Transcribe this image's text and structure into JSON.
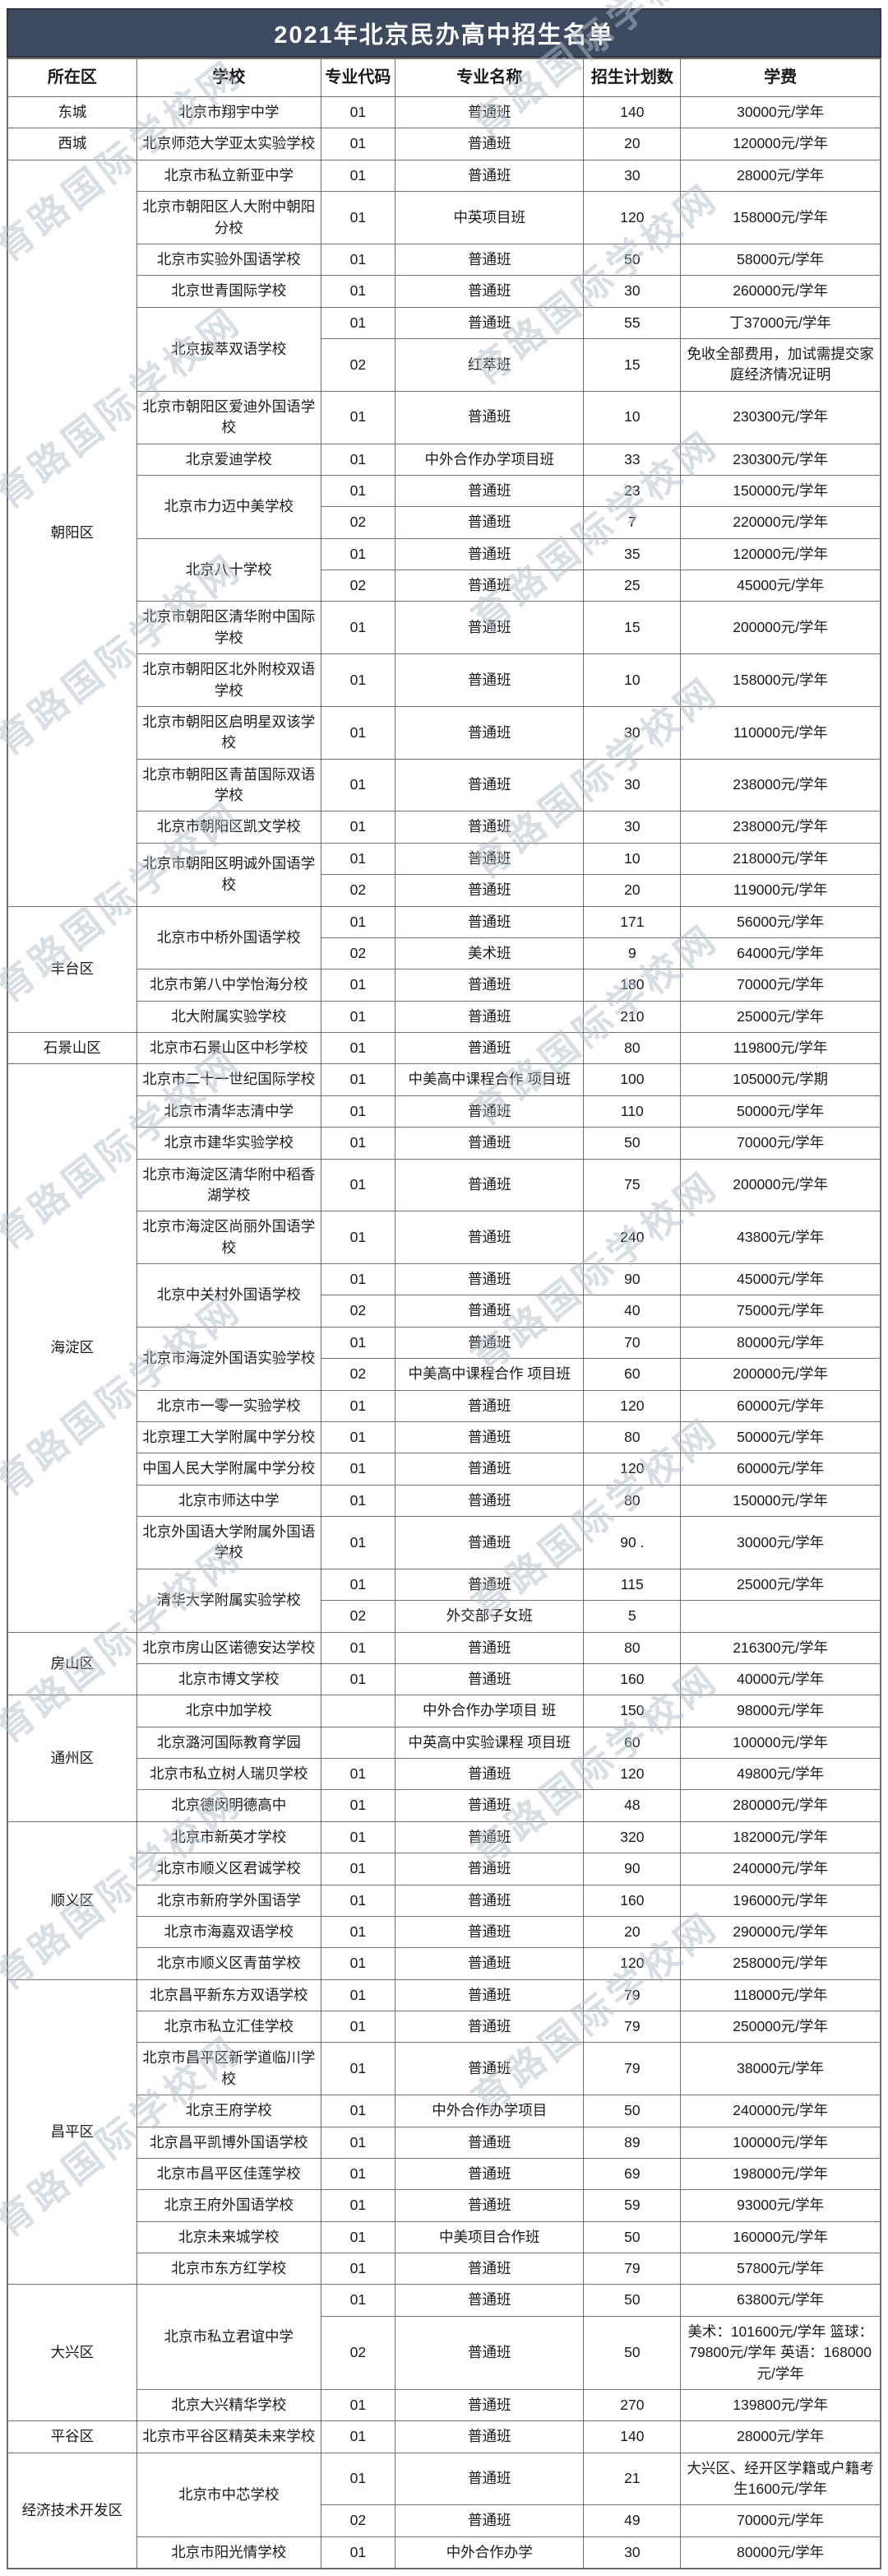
{
  "title": "2021年北京民办高中招生名单",
  "watermark": "育路国际学校网",
  "colors": {
    "header_bg": "#3e4a5f",
    "header_text": "#ffffff",
    "border": "#6f6f6f",
    "watermark": "#b4bccb"
  },
  "table": {
    "columns": [
      "所在区",
      "学校",
      "专业代码",
      "专业名称",
      "招生计划数",
      "学费"
    ],
    "districts": [
      {
        "name": "东城",
        "schools": [
          {
            "name": "北京市翔宇中学",
            "programs": [
              {
                "code": "01",
                "major": "普通班",
                "plan": "140",
                "fee": "30000元/学年"
              }
            ]
          }
        ]
      },
      {
        "name": "西城",
        "schools": [
          {
            "name": "北京师范大学亚太实验学校",
            "programs": [
              {
                "code": "01",
                "major": "普通班",
                "plan": "20",
                "fee": "120000元/学年"
              }
            ]
          }
        ]
      },
      {
        "name": "朝阳区",
        "schools": [
          {
            "name": "北京市私立新亚中学",
            "programs": [
              {
                "code": "01",
                "major": "普通班",
                "plan": "30",
                "fee": "28000元/学年"
              }
            ]
          },
          {
            "name": "北京市朝阳区人大附中朝阳分校",
            "programs": [
              {
                "code": "01",
                "major": "中英项目班",
                "plan": "120",
                "fee": "158000元/学年"
              }
            ]
          },
          {
            "name": "北京市实验外国语学校",
            "programs": [
              {
                "code": "01",
                "major": "普通班",
                "plan": "50",
                "fee": "58000元/学年"
              }
            ]
          },
          {
            "name": "北京世青国际学校",
            "programs": [
              {
                "code": "01",
                "major": "普通班",
                "plan": "30",
                "fee": "260000元/学年"
              }
            ]
          },
          {
            "name": "北京拔萃双语学校",
            "programs": [
              {
                "code": "01",
                "major": "普通班",
                "plan": "55",
                "fee": "丁37000元/学年"
              },
              {
                "code": "02",
                "major": "红萃班",
                "plan": "15",
                "fee": "免收全部费用，加试需提交家庭经济情况证明"
              }
            ]
          },
          {
            "name": "北京市朝阳区爱迪外国语学校",
            "programs": [
              {
                "code": "01",
                "major": "普通班",
                "plan": "10",
                "fee": "230300元/学年"
              }
            ]
          },
          {
            "name": "北京爱迪学校",
            "programs": [
              {
                "code": "01",
                "major": "中外合作办学项目班",
                "plan": "33",
                "fee": "230300元/学年"
              }
            ]
          },
          {
            "name": "北京市力迈中美学校",
            "programs": [
              {
                "code": "01",
                "major": "普通班",
                "plan": "23",
                "fee": "150000元/学年"
              },
              {
                "code": "02",
                "major": "普通班",
                "plan": "7",
                "fee": "220000元/学年"
              }
            ]
          },
          {
            "name": "北京八十学校",
            "programs": [
              {
                "code": "01",
                "major": "普通班",
                "plan": "35",
                "fee": "120000元/学年"
              },
              {
                "code": "02",
                "major": "普通班",
                "plan": "25",
                "fee": "45000元/学年"
              }
            ]
          },
          {
            "name": "北京市朝阳区清华附中国际学校",
            "programs": [
              {
                "code": "01",
                "major": "普通班",
                "plan": "15",
                "fee": "200000元/学年"
              }
            ]
          },
          {
            "name": "北京市朝阳区北外附校双语学校",
            "programs": [
              {
                "code": "01",
                "major": "普通班",
                "plan": "10",
                "fee": "158000元/学年"
              }
            ]
          },
          {
            "name": "北京市朝阳区启明星双该学校",
            "programs": [
              {
                "code": "01",
                "major": "普通班",
                "plan": "30",
                "fee": "110000元/学年"
              }
            ]
          },
          {
            "name": "北京市朝阳区青苗国际双语学校",
            "programs": [
              {
                "code": "01",
                "major": "普通班",
                "plan": "30",
                "fee": "238000元/学年"
              }
            ]
          },
          {
            "name": "北京市朝阳区凯文学校",
            "programs": [
              {
                "code": "01",
                "major": "普通班",
                "plan": "30",
                "fee": "238000元/学年"
              }
            ]
          },
          {
            "name": "北京市朝阳区明诚外国语学校",
            "programs": [
              {
                "code": "01",
                "major": "普通班",
                "plan": "10",
                "fee": "218000元/学年"
              },
              {
                "code": "02",
                "major": "普通班",
                "plan": "20",
                "fee": "119000元/学年"
              }
            ]
          }
        ]
      },
      {
        "name": "丰台区",
        "schools": [
          {
            "name": "北京市中桥外国语学校",
            "programs": [
              {
                "code": "01",
                "major": "普通班",
                "plan": "171",
                "fee": "56000元/学年"
              },
              {
                "code": "02",
                "major": "美术班",
                "plan": "9",
                "fee": "64000元/学年"
              }
            ]
          },
          {
            "name": "北京市第八中学怡海分校",
            "programs": [
              {
                "code": "01",
                "major": "普通班",
                "plan": "180",
                "fee": "70000元/学年"
              }
            ]
          },
          {
            "name": "北大附属实验学校",
            "programs": [
              {
                "code": "01",
                "major": "普通班",
                "plan": "210",
                "fee": "25000元/学年"
              }
            ]
          }
        ]
      },
      {
        "name": "石景山区",
        "schools": [
          {
            "name": "北京市石景山区中杉学校",
            "programs": [
              {
                "code": "01",
                "major": "普通班",
                "plan": "80",
                "fee": "119800元/学年"
              }
            ]
          }
        ]
      },
      {
        "name": "海淀区",
        "schools": [
          {
            "name": "北京市二十一世纪国际学校",
            "programs": [
              {
                "code": "01",
                "major": "中美高中课程合作 项目班",
                "plan": "100",
                "fee": "105000元/学期"
              }
            ]
          },
          {
            "name": "北京市清华志清中学",
            "programs": [
              {
                "code": "01",
                "major": "普通班",
                "plan": "110",
                "fee": "50000元/学年"
              }
            ]
          },
          {
            "name": "北京市建华实验学校",
            "programs": [
              {
                "code": "01",
                "major": "普通班",
                "plan": "50",
                "fee": "70000元/学年"
              }
            ]
          },
          {
            "name": "北京市海淀区清华附中稻香湖学校",
            "programs": [
              {
                "code": "01",
                "major": "普通班",
                "plan": "75",
                "fee": "200000元/学年"
              }
            ]
          },
          {
            "name": "北京市海淀区尚丽外国语学校",
            "programs": [
              {
                "code": "01",
                "major": "普通班",
                "plan": "240",
                "fee": "43800元/学年"
              }
            ]
          },
          {
            "name": "北京中关村外国语学校",
            "programs": [
              {
                "code": "01",
                "major": "普通班",
                "plan": "90",
                "fee": "45000元/学年"
              },
              {
                "code": "02",
                "major": "普通班",
                "plan": "40",
                "fee": "75000元/学年"
              }
            ]
          },
          {
            "name": "北京市海淀外国语实验学校",
            "programs": [
              {
                "code": "01",
                "major": "普通班",
                "plan": "70",
                "fee": "80000元/学年"
              },
              {
                "code": "02",
                "major": "中美高中课程合作 项目班",
                "plan": "60",
                "fee": "200000元/学年"
              }
            ]
          },
          {
            "name": "北京市一零一实验学校",
            "programs": [
              {
                "code": "01",
                "major": "普通班",
                "plan": "120",
                "fee": "60000元/学年"
              }
            ]
          },
          {
            "name": "北京理工大学附属中学分校",
            "programs": [
              {
                "code": "01",
                "major": "普通班",
                "plan": "80",
                "fee": "50000元/学年"
              }
            ]
          },
          {
            "name": "中国人民大学附属中学分校",
            "programs": [
              {
                "code": "01",
                "major": "普通班",
                "plan": "120",
                "fee": "60000元/学年"
              }
            ]
          },
          {
            "name": "北京市师达中学",
            "programs": [
              {
                "code": "01",
                "major": "普通班",
                "plan": "80",
                "fee": "150000元/学年"
              }
            ]
          },
          {
            "name": "北京外国语大学附属外国语学校",
            "programs": [
              {
                "code": "01",
                "major": "普通班",
                "plan": "90 .",
                "fee": "30000元/学年"
              }
            ]
          },
          {
            "name": "清华大学附属实验学校",
            "programs": [
              {
                "code": "01",
                "major": "普通班",
                "plan": "115",
                "fee": "25000元/学年"
              },
              {
                "code": "02",
                "major": "外交部子女班",
                "plan": "5",
                "fee": ""
              }
            ]
          }
        ]
      },
      {
        "name": "房山区",
        "schools": [
          {
            "name": "北京市房山区诺德安达学校",
            "programs": [
              {
                "code": "01",
                "major": "普通班",
                "plan": "80",
                "fee": "216300元/学年"
              }
            ]
          },
          {
            "name": "北京市博文学校",
            "programs": [
              {
                "code": "01",
                "major": "普通班",
                "plan": "160",
                "fee": "40000元/学年"
              }
            ]
          }
        ]
      },
      {
        "name": "通州区",
        "schools": [
          {
            "name": "北京中加学校",
            "programs": [
              {
                "code": "",
                "major": "中外合作办学项目 班",
                "plan": "150",
                "fee": "98000元/学年"
              }
            ]
          },
          {
            "name": "北京潞河国际教育学园",
            "programs": [
              {
                "code": "",
                "major": "中英高中实验课程 项目班",
                "plan": "60",
                "fee": "100000元/学年"
              }
            ]
          },
          {
            "name": "北京市私立树人瑞贝学校",
            "programs": [
              {
                "code": "01",
                "major": "普通班",
                "plan": "120",
                "fee": "49800元/学年"
              }
            ]
          },
          {
            "name": "北京德闵明德高中",
            "programs": [
              {
                "code": "01",
                "major": "普通班",
                "plan": "48",
                "fee": "280000元/学年"
              }
            ]
          }
        ]
      },
      {
        "name": "顺义区",
        "schools": [
          {
            "name": "北京市新英才学校",
            "programs": [
              {
                "code": "01",
                "major": "普通班",
                "plan": "320",
                "fee": "182000元/学年"
              }
            ]
          },
          {
            "name": "北京市顺义区君诚学校",
            "programs": [
              {
                "code": "01",
                "major": "普通班",
                "plan": "90",
                "fee": "240000元/学年"
              }
            ]
          },
          {
            "name": "北京市新府学外国语学",
            "programs": [
              {
                "code": "01",
                "major": "普通班",
                "plan": "160",
                "fee": "196000元/学年"
              }
            ]
          },
          {
            "name": "北京市海嘉双语学校",
            "programs": [
              {
                "code": "01",
                "major": "普通班",
                "plan": "20",
                "fee": "290000元/学年"
              }
            ]
          },
          {
            "name": "北京市顺义区青苗学校",
            "programs": [
              {
                "code": "01",
                "major": "普通班",
                "plan": "120",
                "fee": "258000元/学年"
              }
            ]
          }
        ]
      },
      {
        "name": "昌平区",
        "schools": [
          {
            "name": "北京昌平新东方双语学校",
            "programs": [
              {
                "code": "01",
                "major": "普通班",
                "plan": "79",
                "fee": "118000元/学年"
              }
            ]
          },
          {
            "name": "北京市私立汇佳学校",
            "programs": [
              {
                "code": "01",
                "major": "普通班",
                "plan": "79",
                "fee": "250000元/学年"
              }
            ]
          },
          {
            "name": "北京市昌平区新学道临川学校",
            "programs": [
              {
                "code": "01",
                "major": "普通班",
                "plan": "79",
                "fee": "38000元/学年"
              }
            ]
          },
          {
            "name": "北京王府学校",
            "programs": [
              {
                "code": "01",
                "major": "中外合作办学项目",
                "plan": "50",
                "fee": "240000元/学年"
              }
            ]
          },
          {
            "name": "北京昌平凯博外国语学校",
            "programs": [
              {
                "code": "01",
                "major": "普通班",
                "plan": "89",
                "fee": "100000元/学年"
              }
            ]
          },
          {
            "name": "北京市昌平区佳莲学校",
            "programs": [
              {
                "code": "01",
                "major": "普通班",
                "plan": "69",
                "fee": "198000元/学年"
              }
            ]
          },
          {
            "name": "北京王府外国语学校",
            "programs": [
              {
                "code": "01",
                "major": "普通班",
                "plan": "59",
                "fee": "93000元/学年"
              }
            ]
          },
          {
            "name": "北京未来城学校",
            "programs": [
              {
                "code": "01",
                "major": "中美项目合作班",
                "plan": "50",
                "fee": "160000元/学年"
              }
            ]
          },
          {
            "name": "北京市东方红学校",
            "programs": [
              {
                "code": "01",
                "major": "普通班",
                "plan": "79",
                "fee": "57800元/学年"
              }
            ]
          }
        ]
      },
      {
        "name": "大兴区",
        "schools": [
          {
            "name": "北京市私立君谊中学",
            "programs": [
              {
                "code": "01",
                "major": "普通班",
                "plan": "50",
                "fee": "63800元/学年"
              },
              {
                "code": "02",
                "major": "普通班",
                "plan": "50",
                "fee": "美术：101600元/学年 篮球：79800元/学年 英语：168000元/学年"
              }
            ]
          },
          {
            "name": "北京大兴精华学校",
            "programs": [
              {
                "code": "01",
                "major": "普通班",
                "plan": "270",
                "fee": "139800元/学年"
              }
            ]
          }
        ]
      },
      {
        "name": "平谷区",
        "schools": [
          {
            "name": "北京市平谷区精英未来学校",
            "programs": [
              {
                "code": "01",
                "major": "普通班",
                "plan": "140",
                "fee": "28000元/学年"
              }
            ]
          }
        ]
      },
      {
        "name": "经济技术开发区",
        "schools": [
          {
            "name": "北京市中芯学校",
            "programs": [
              {
                "code": "01",
                "major": "普通班",
                "plan": "21",
                "fee": "大兴区、经开区学籍或户籍考生1600元/学年"
              },
              {
                "code": "02",
                "major": "普通班",
                "plan": "49",
                "fee": "70000元/学年"
              }
            ]
          },
          {
            "name": "北京市阳光情学校",
            "programs": [
              {
                "code": "01",
                "major": "中外合作办学",
                "plan": "30",
                "fee": "80000元/学年"
              }
            ]
          }
        ]
      }
    ]
  }
}
